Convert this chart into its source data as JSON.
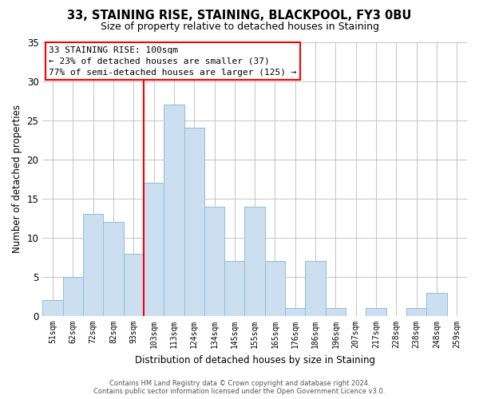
{
  "title": "33, STAINING RISE, STAINING, BLACKPOOL, FY3 0BU",
  "subtitle": "Size of property relative to detached houses in Staining",
  "xlabel": "Distribution of detached houses by size in Staining",
  "ylabel": "Number of detached properties",
  "bar_labels": [
    "51sqm",
    "62sqm",
    "72sqm",
    "82sqm",
    "93sqm",
    "103sqm",
    "113sqm",
    "124sqm",
    "134sqm",
    "145sqm",
    "155sqm",
    "165sqm",
    "176sqm",
    "186sqm",
    "196sqm",
    "207sqm",
    "217sqm",
    "228sqm",
    "238sqm",
    "248sqm",
    "259sqm"
  ],
  "bar_values": [
    2,
    5,
    13,
    12,
    8,
    17,
    27,
    24,
    14,
    7,
    14,
    7,
    1,
    7,
    1,
    0,
    1,
    0,
    1,
    3,
    0
  ],
  "bar_color": "#ccdff0",
  "bar_edgecolor": "#92bdd8",
  "redline_index": 5,
  "ylim": [
    0,
    35
  ],
  "yticks": [
    0,
    5,
    10,
    15,
    20,
    25,
    30,
    35
  ],
  "annotation_title": "33 STAINING RISE: 100sqm",
  "annotation_line1": "← 23% of detached houses are smaller (37)",
  "annotation_line2": "77% of semi-detached houses are larger (125) →",
  "footer1": "Contains HM Land Registry data © Crown copyright and database right 2024.",
  "footer2": "Contains public sector information licensed under the Open Government Licence v3.0.",
  "bg_color": "#ffffff",
  "grid_color": "#bbbbbb"
}
